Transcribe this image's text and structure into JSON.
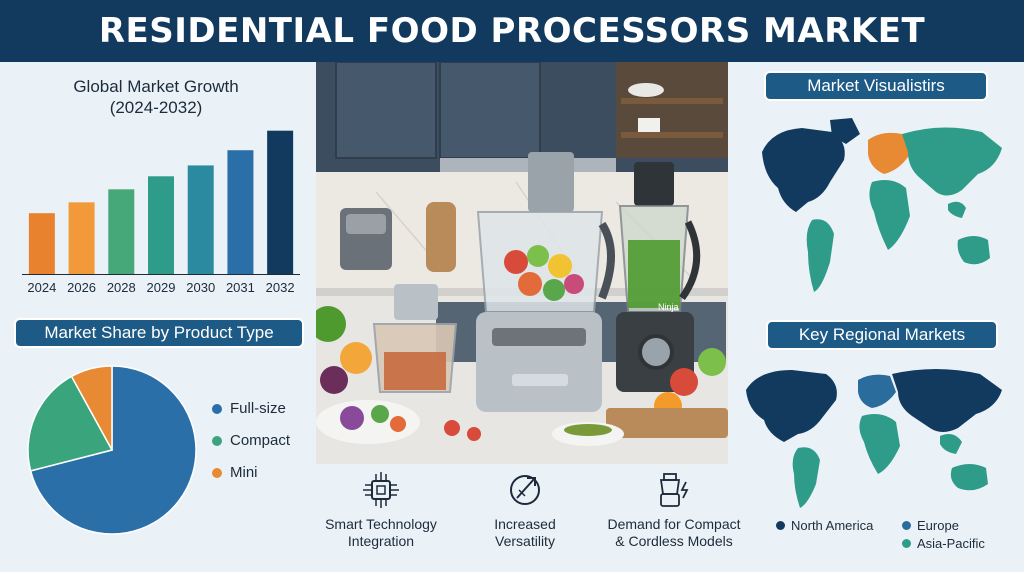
{
  "header": {
    "title": "RESIDENTIAL FOOD PROCESSORS MARKET"
  },
  "growth_chart": {
    "title_line1": "Global Market Growth",
    "title_line2": "(2024-2032)"
  },
  "share_chart": {
    "title": "Market Share by Product Type"
  },
  "map1": {
    "title": "Market Visualistirs"
  },
  "map2": {
    "title": "Key Regional Markets"
  },
  "product_labels": {
    "ninja": "Ninja"
  },
  "features": [
    {
      "icon": "chip-icon",
      "label": "Smart Technology\nIntegration"
    },
    {
      "icon": "expand-arrows-icon",
      "label": "Increased\nVersatility"
    },
    {
      "icon": "cordless-processor-icon",
      "label": "Demand for Compact\n& Cordless Models"
    }
  ],
  "region_legend": [
    {
      "name": "North America",
      "color": "#123a5e"
    },
    {
      "name": "Europe",
      "color": "#2a6c9c"
    },
    {
      "name": "Asia-Pacific",
      "color": "#2f9c8a"
    }
  ],
  "colors": {
    "header": "#123a5e",
    "accent_blue": "#1d5a86",
    "full_size": "#2a6fa8",
    "compact": "#3aa57c",
    "mini": "#e88a34"
  },
  "chart_data": [
    {
      "type": "bar",
      "title": "Global Market Growth (2024-2032)",
      "categories": [
        "2024",
        "2026",
        "2028",
        "2029",
        "2030",
        "2031",
        "2032"
      ],
      "values": [
        28,
        33,
        39,
        45,
        50,
        57,
        66
      ],
      "ylim": [
        0,
        70
      ],
      "grid": false,
      "colors": [
        "#e8822f",
        "#f29a3a",
        "#46a879",
        "#2f9c8a",
        "#2b8aa0",
        "#2a6fa8",
        "#123a5e"
      ]
    },
    {
      "type": "pie",
      "title": "Market Share by Product Type",
      "labels": [
        "Full-size",
        "Compact",
        "Mini"
      ],
      "values": [
        71,
        21,
        8
      ],
      "colors": [
        "#2a6fa8",
        "#3aa57c",
        "#e88a34"
      ],
      "legend": "right"
    }
  ]
}
